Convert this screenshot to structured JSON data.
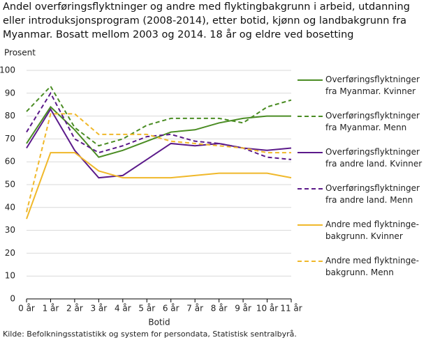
{
  "chart_data": {
    "type": "line",
    "title": "Andel overføringsflyktninger og andre med flyktingbakgrunn i arbeid, utdanning eller introduksjonsprogram (2008-2014), etter botid, kjønn og landbakgrunn fra Myanmar. Bosatt mellom 2003 og 2014. 18 år og eldre ved bosetting",
    "y_label": "Prosent",
    "x_label": "Botid",
    "source": "Kilde: Befolkningsstatistikk og system for persondata, Statistisk sentralbyrå.",
    "categories": [
      "0 år",
      "1 år",
      "2 år",
      "3 år",
      "4 år",
      "5 år",
      "6 år",
      "7 år",
      "8 år",
      "9 år",
      "10 år",
      "11 år"
    ],
    "series": [
      {
        "name": "Overføringsflyktninger fra Myanmar. Kvinner",
        "color": "#4a8c23",
        "dashed": false,
        "values": [
          68,
          84,
          74,
          62,
          65,
          69,
          73,
          74,
          77,
          79,
          80,
          80
        ]
      },
      {
        "name": "Overføringsflyktninger fra Myanmar. Menn",
        "color": "#4a8c23",
        "dashed": true,
        "values": [
          82,
          93,
          75,
          67,
          70,
          76,
          79,
          79,
          79,
          77,
          84,
          87
        ]
      },
      {
        "name": "Overføringsflyktninger fra andre land. Kvinner",
        "color": "#5b1a8a",
        "dashed": false,
        "values": [
          66,
          83,
          65,
          53,
          54,
          61,
          68,
          67,
          68,
          66,
          65,
          66
        ]
      },
      {
        "name": "Overføringsflyktninger fra andre land. Menn",
        "color": "#5b1a8a",
        "dashed": true,
        "values": [
          73,
          90,
          70,
          64,
          67,
          71,
          72,
          69,
          68,
          66,
          62,
          61
        ]
      },
      {
        "name": "Andre med flyktninge-bakgrunn. Kvinner",
        "color": "#f0b82a",
        "dashed": false,
        "values": [
          35,
          64,
          64,
          56,
          53,
          53,
          53,
          54,
          55,
          55,
          55,
          53
        ]
      },
      {
        "name": "Andre med flyktninge-bakgrunn. Menn",
        "color": "#f0b82a",
        "dashed": true,
        "values": [
          38,
          81,
          81,
          72,
          72,
          72,
          69,
          68,
          67,
          66,
          64,
          64
        ]
      }
    ],
    "ylim": [
      0,
      100
    ],
    "yticks": [
      0,
      10,
      20,
      30,
      40,
      50,
      60,
      70,
      80,
      90,
      100
    ],
    "grid": true
  }
}
